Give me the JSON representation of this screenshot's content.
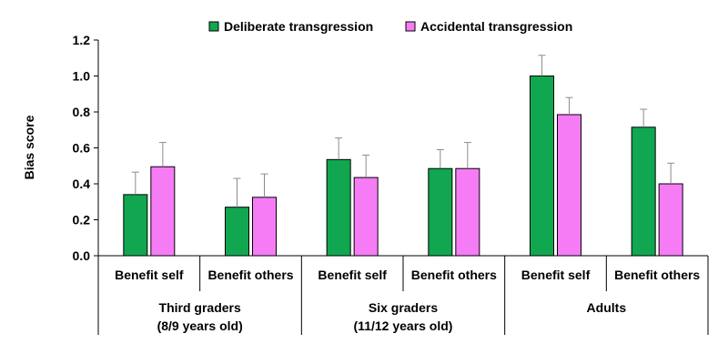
{
  "chart_data": {
    "type": "bar",
    "ylabel": "Bias score",
    "ylim": [
      0,
      1.2
    ],
    "yticks": [
      "0.0",
      "0.2",
      "0.4",
      "0.6",
      "0.8",
      "1.0",
      "1.2"
    ],
    "ytick_values": [
      0,
      0.2,
      0.4,
      0.6,
      0.8,
      1.0,
      1.2
    ],
    "legend_position": "top-center",
    "categories": [
      "Benefit self",
      "Benefit others",
      "Benefit self",
      "Benefit others",
      "Benefit self",
      "Benefit others"
    ],
    "groups": [
      {
        "label_line1": "Third graders",
        "label_line2": "(8/9 years old)"
      },
      {
        "label_line1": "Six graders",
        "label_line2": "(11/12 years old)"
      },
      {
        "label_line1": "Adults",
        "label_line2": ""
      }
    ],
    "series": [
      {
        "name": "Deliberate transgression",
        "color": "#11a650",
        "values": [
          0.34,
          0.27,
          0.535,
          0.485,
          1.0,
          0.715
        ],
        "errors": [
          0.125,
          0.16,
          0.12,
          0.105,
          0.115,
          0.1
        ]
      },
      {
        "name": "Accidental transgression",
        "color": "#f57cf5",
        "values": [
          0.495,
          0.325,
          0.435,
          0.485,
          0.785,
          0.4
        ],
        "errors": [
          0.135,
          0.13,
          0.125,
          0.145,
          0.095,
          0.115
        ]
      }
    ]
  }
}
